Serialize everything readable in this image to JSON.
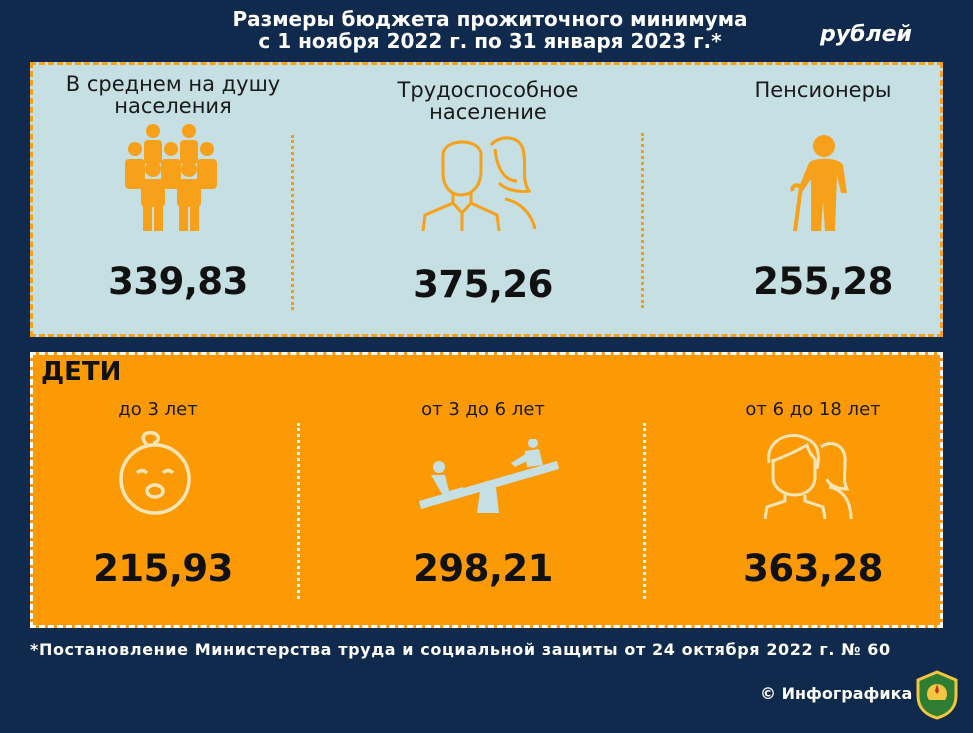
{
  "header": {
    "title_line1": "Размеры бюджета прожиточного минимума",
    "title_line2": "с 1 ноября 2022 г. по 31 января 2023 г.*",
    "unit": "рублей"
  },
  "adults": {
    "per_capita": {
      "label_line1": "В среднем на душу",
      "label_line2": "населения",
      "value": "339,83",
      "icon": "people-group-icon"
    },
    "working_age": {
      "label_line1": "Трудоспособное",
      "label_line2": "население",
      "value": "375,26",
      "icon": "couple-icon"
    },
    "pensioners": {
      "label": "Пенсионеры",
      "value": "255,28",
      "icon": "elderly-person-icon"
    }
  },
  "children": {
    "title": "ДЕТИ",
    "under3": {
      "label": "до 3 лет",
      "value": "215,93",
      "icon": "baby-face-icon"
    },
    "age3to6": {
      "label": "от 3 до 6 лет",
      "value": "298,21",
      "icon": "seesaw-icon"
    },
    "age6to18": {
      "label": "от 6 до 18 лет",
      "value": "363,28",
      "icon": "teenagers-icon"
    }
  },
  "footnote": "*Постановление Министерства труда и социальной защиты от 24 октября 2022 г. № 60",
  "credit": "© Инфографика",
  "colors": {
    "background": "#0f2a4d",
    "top_panel": "#c5dfe2",
    "bottom_panel": "#fb9a05",
    "accent": "#f7a11a"
  }
}
